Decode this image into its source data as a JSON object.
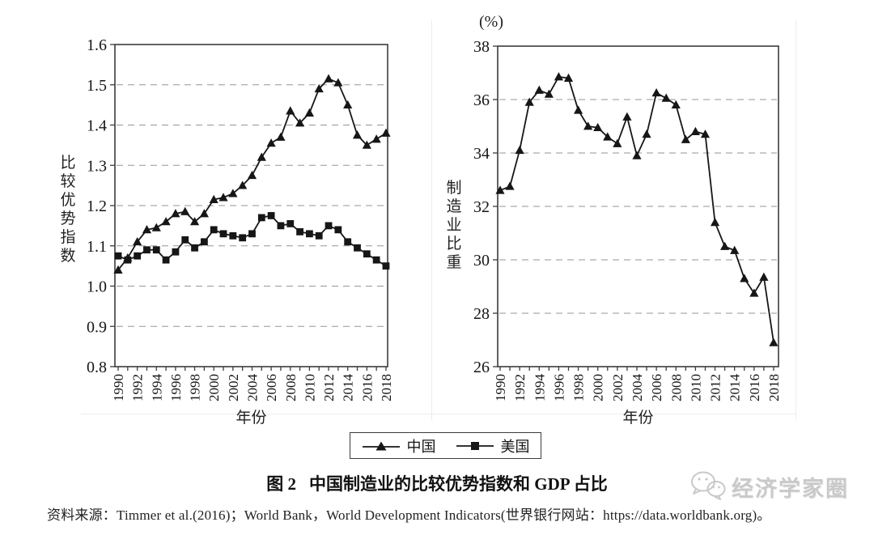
{
  "figure": {
    "caption_label": "图 2",
    "caption_title": "中国制造业的比较优势指数和 GDP 占比",
    "source": "资料来源：Timmer et al.(2016)；World Bank，World Development Indicators(世界银行网站：https://data.worldbank.org)。",
    "watermark": "经济学家圈"
  },
  "legend": {
    "items": [
      {
        "label": "中国",
        "marker": "triangle"
      },
      {
        "label": "美国",
        "marker": "square"
      }
    ]
  },
  "colors": {
    "line": "#161616",
    "grid": "#969696",
    "frame": "#3c3c3c",
    "watermark": "#c9c9c9"
  },
  "chart_data": [
    {
      "id": "left",
      "type": "line",
      "title": "",
      "ylabel": "比较优势指数",
      "xlabel": "年份",
      "ylim": [
        0.8,
        1.6
      ],
      "ytick_step": 0.1,
      "ytick_decimals": 1,
      "xtick_every": 2,
      "grid": true,
      "x": [
        1990,
        1991,
        1992,
        1993,
        1994,
        1995,
        1996,
        1997,
        1998,
        1999,
        2000,
        2001,
        2002,
        2003,
        2004,
        2005,
        2006,
        2007,
        2008,
        2009,
        2010,
        2011,
        2012,
        2013,
        2014,
        2015,
        2016,
        2017,
        2018
      ],
      "series": [
        {
          "name": "中国",
          "marker": "triangle",
          "values": [
            1.04,
            1.07,
            1.11,
            1.14,
            1.145,
            1.16,
            1.18,
            1.185,
            1.16,
            1.18,
            1.215,
            1.22,
            1.23,
            1.25,
            1.275,
            1.32,
            1.355,
            1.37,
            1.435,
            1.405,
            1.43,
            1.49,
            1.515,
            1.505,
            1.45,
            1.375,
            1.35,
            1.365,
            1.38
          ]
        },
        {
          "name": "美国",
          "marker": "square",
          "values": [
            1.075,
            1.065,
            1.075,
            1.09,
            1.09,
            1.065,
            1.085,
            1.115,
            1.095,
            1.11,
            1.14,
            1.13,
            1.125,
            1.12,
            1.13,
            1.17,
            1.175,
            1.15,
            1.155,
            1.135,
            1.13,
            1.125,
            1.15,
            1.14,
            1.11,
            1.095,
            1.08,
            1.065,
            1.05
          ]
        }
      ]
    },
    {
      "id": "right",
      "type": "line",
      "title": "",
      "unit": "(%)",
      "ylabel": "制造业比重",
      "xlabel": "年份",
      "ylim": [
        26,
        38
      ],
      "ytick_step": 2,
      "ytick_decimals": 0,
      "xtick_every": 2,
      "grid": true,
      "x": [
        1990,
        1991,
        1992,
        1993,
        1994,
        1995,
        1996,
        1997,
        1998,
        1999,
        2000,
        2001,
        2002,
        2003,
        2004,
        2005,
        2006,
        2007,
        2008,
        2009,
        2010,
        2011,
        2012,
        2013,
        2014,
        2015,
        2016,
        2017,
        2018
      ],
      "series": [
        {
          "name": "中国",
          "marker": "triangle",
          "values": [
            32.6,
            32.75,
            34.1,
            35.9,
            36.35,
            36.2,
            36.85,
            36.8,
            35.6,
            35.0,
            34.95,
            34.6,
            34.35,
            35.35,
            33.9,
            34.7,
            36.25,
            36.05,
            35.8,
            34.5,
            34.8,
            34.7,
            31.4,
            30.5,
            30.35,
            29.3,
            28.75,
            29.35,
            26.9
          ]
        }
      ]
    }
  ]
}
